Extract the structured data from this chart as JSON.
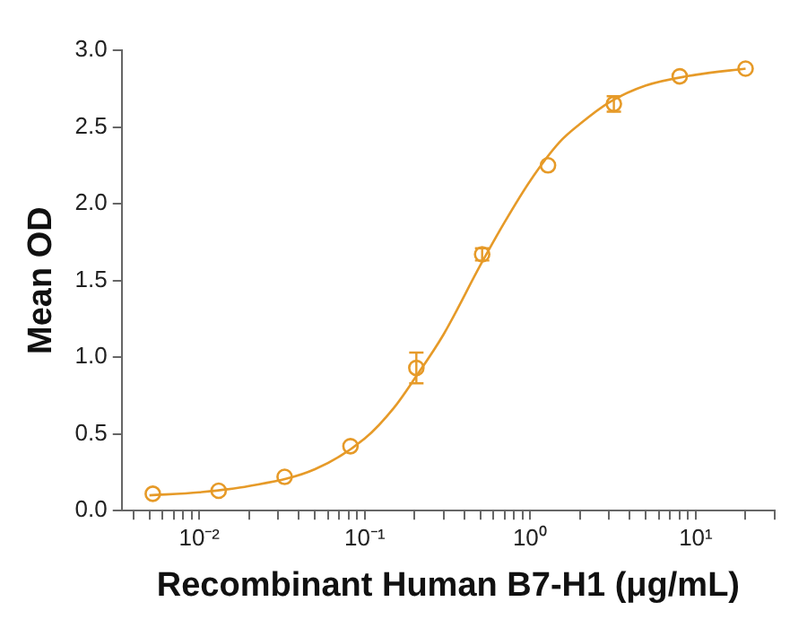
{
  "chart_data": {
    "type": "scatter",
    "xlabel": "Recombinant Human B7-H1 (μg/mL)",
    "ylabel": "Mean OD",
    "log": "x",
    "grid": false,
    "legend": false,
    "marker": "circle",
    "xlim": [
      0.0034,
      30
    ],
    "ylim": [
      0,
      3.0
    ],
    "xticks": [
      {
        "value": 0.004,
        "label": null
      },
      {
        "value": 0.005,
        "label": null
      },
      {
        "value": 0.006,
        "label": null
      },
      {
        "value": 0.007,
        "label": null
      },
      {
        "value": 0.008,
        "label": null
      },
      {
        "value": 0.009,
        "label": null
      },
      {
        "value": 0.01,
        "label": "10⁻²"
      },
      {
        "value": 0.02,
        "label": null
      },
      {
        "value": 0.03,
        "label": null
      },
      {
        "value": 0.04,
        "label": null
      },
      {
        "value": 0.05,
        "label": null
      },
      {
        "value": 0.06,
        "label": null
      },
      {
        "value": 0.07,
        "label": null
      },
      {
        "value": 0.08,
        "label": null
      },
      {
        "value": 0.09,
        "label": null
      },
      {
        "value": 0.1,
        "label": "10⁻¹"
      },
      {
        "value": 0.2,
        "label": null
      },
      {
        "value": 0.3,
        "label": null
      },
      {
        "value": 0.4,
        "label": null
      },
      {
        "value": 0.5,
        "label": null
      },
      {
        "value": 0.6,
        "label": null
      },
      {
        "value": 0.7,
        "label": null
      },
      {
        "value": 0.8,
        "label": null
      },
      {
        "value": 0.9,
        "label": null
      },
      {
        "value": 1,
        "label": "10⁰"
      },
      {
        "value": 2,
        "label": null
      },
      {
        "value": 3,
        "label": null
      },
      {
        "value": 4,
        "label": null
      },
      {
        "value": 5,
        "label": null
      },
      {
        "value": 6,
        "label": null
      },
      {
        "value": 7,
        "label": null
      },
      {
        "value": 8,
        "label": null
      },
      {
        "value": 9,
        "label": null
      },
      {
        "value": 10,
        "label": "10¹"
      },
      {
        "value": 20,
        "label": null
      },
      {
        "value": 30,
        "label": null
      }
    ],
    "yticks": [
      {
        "value": 0,
        "label": "0.0"
      },
      {
        "value": 0.5,
        "label": "0.5"
      },
      {
        "value": 1,
        "label": "1.0"
      },
      {
        "value": 1.5,
        "label": "1.5"
      },
      {
        "value": 2,
        "label": "2.0"
      },
      {
        "value": 2.5,
        "label": "2.5"
      },
      {
        "value": 3,
        "label": "3.0"
      }
    ],
    "series": [
      {
        "color": "#e69a28",
        "x": [
          0.00524,
          0.0131,
          0.0328,
          0.082,
          0.205,
          0.512,
          1.28,
          3.2,
          8,
          20
        ],
        "values": [
          0.11,
          0.13,
          0.22,
          0.42,
          0.93,
          1.67,
          2.25,
          2.65,
          2.83,
          2.88
        ],
        "errors": [
          null,
          null,
          null,
          null,
          0.1,
          0.04,
          null,
          0.05,
          null,
          null
        ]
      },
      {
        "type": "line",
        "color": "#e69a28",
        "marker": "none",
        "x": [
          0.005,
          0.01,
          0.02,
          0.05,
          0.1,
          0.15,
          0.2,
          0.3,
          0.5,
          0.7,
          1,
          1.5,
          2,
          3,
          5,
          10,
          20
        ],
        "values": [
          0.1,
          0.12,
          0.16,
          0.27,
          0.47,
          0.67,
          0.86,
          1.15,
          1.6,
          1.88,
          2.15,
          2.4,
          2.52,
          2.66,
          2.77,
          2.84,
          2.88
        ]
      }
    ]
  }
}
